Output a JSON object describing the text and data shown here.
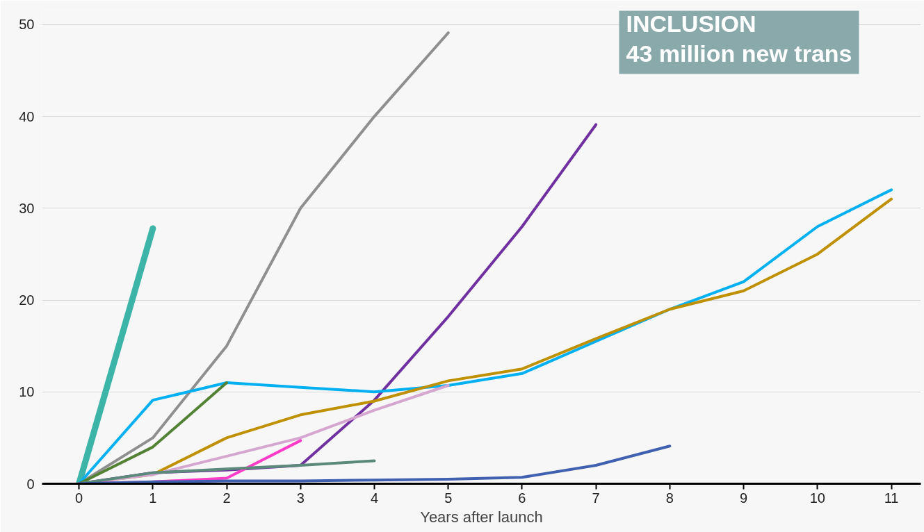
{
  "chart_data": {
    "type": "line",
    "title": "INCLUSION",
    "subtitle": "43 million new trans",
    "xlabel": "Years after launch",
    "xlim": [
      -0.5,
      11.4
    ],
    "xticks": [
      0,
      1,
      2,
      3,
      4,
      5,
      6,
      7,
      8,
      9,
      10,
      11
    ],
    "ylim": [
      0,
      51.5
    ],
    "yticks": [
      0,
      10,
      20,
      30,
      40,
      50
    ],
    "grid": "y",
    "series": [
      {
        "color": "#3cb4a8",
        "x": [
          0,
          1
        ],
        "values": [
          0,
          27.8
        ]
      },
      {
        "color": "#8f8f8f",
        "x": [
          0,
          1,
          2,
          3,
          4,
          5
        ],
        "values": [
          0,
          5,
          15,
          30,
          40,
          49.1
        ]
      },
      {
        "color": "#7030a0",
        "x": [
          0,
          1,
          2,
          3,
          4,
          5,
          6,
          7
        ],
        "values": [
          0,
          1.2,
          1.5,
          2,
          9.1,
          18.2,
          28,
          39.1
        ]
      },
      {
        "color": "#00b0f0",
        "x": [
          0,
          1,
          2,
          3,
          4,
          5,
          6,
          7,
          8,
          9,
          10,
          11
        ],
        "values": [
          0,
          9.1,
          11,
          10.5,
          10,
          10.7,
          12,
          15.5,
          19,
          22,
          28,
          32
        ]
      },
      {
        "color": "#bf9000",
        "x": [
          0,
          1,
          2,
          3,
          4,
          5,
          6,
          7,
          8,
          9,
          10,
          11
        ],
        "values": [
          0,
          1,
          5,
          7.5,
          9,
          11.2,
          12.5,
          15.8,
          19,
          21,
          25,
          31
        ]
      },
      {
        "color": "#548235",
        "x": [
          0,
          1,
          2
        ],
        "values": [
          0,
          4,
          11
        ]
      },
      {
        "color": "#d5a6d0",
        "x": [
          0,
          1,
          2,
          3,
          4,
          5
        ],
        "values": [
          0,
          1,
          3,
          5,
          8,
          10.7
        ]
      },
      {
        "color": "#ff3cc8",
        "x": [
          0,
          1,
          2,
          3
        ],
        "values": [
          0,
          0.2,
          0.6,
          4.7
        ]
      },
      {
        "color": "#5b8a7a",
        "x": [
          0,
          1,
          2,
          3,
          4
        ],
        "values": [
          0,
          1.2,
          1.6,
          2,
          2.5
        ]
      },
      {
        "color": "#4060b0",
        "x": [
          0,
          1,
          2,
          3,
          4,
          5,
          6,
          7,
          8
        ],
        "values": [
          0,
          0.2,
          0.3,
          0.3,
          0.4,
          0.5,
          0.7,
          2,
          4.1
        ]
      }
    ]
  }
}
